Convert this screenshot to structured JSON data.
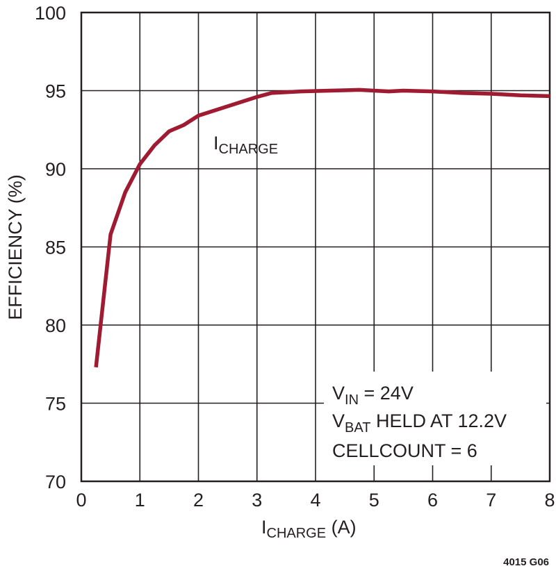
{
  "chart_data": {
    "type": "line",
    "xlabel": {
      "main": "I",
      "sub": "CHARGE",
      "unit": " (A)"
    },
    "ylabel": "EFFICIENCY (%)",
    "xlim": [
      0,
      8
    ],
    "ylim": [
      70,
      100
    ],
    "xticks": [
      "0",
      "1",
      "2",
      "3",
      "4",
      "5",
      "6",
      "7",
      "8"
    ],
    "yticks": [
      "70",
      "75",
      "80",
      "85",
      "90",
      "95",
      "100"
    ],
    "grid": true,
    "line_color": "#9e1b32",
    "series": [
      {
        "label": {
          "main": "I",
          "sub": "CHARGE"
        },
        "x": [
          0.25,
          0.5,
          0.75,
          1.0,
          1.25,
          1.5,
          1.75,
          2.0,
          2.5,
          3.0,
          3.25,
          3.75,
          4.25,
          4.75,
          5.25,
          5.5,
          6.0,
          6.5,
          7.0,
          7.5,
          8.0
        ],
        "y": [
          77.3,
          85.8,
          88.5,
          90.3,
          91.5,
          92.4,
          92.8,
          93.4,
          94.0,
          94.6,
          94.85,
          94.95,
          95.0,
          95.05,
          94.95,
          95.0,
          94.95,
          94.85,
          94.8,
          94.7,
          94.65
        ]
      }
    ],
    "annotations": [
      {
        "main": "V",
        "sub": "IN",
        "rest": " = 24V"
      },
      {
        "main": "V",
        "sub": "BAT",
        "rest": " HELD AT 12.2V"
      },
      {
        "main": "CELLCOUNT = 6",
        "sub": "",
        "rest": ""
      }
    ],
    "figure_id": "4015 G06"
  }
}
